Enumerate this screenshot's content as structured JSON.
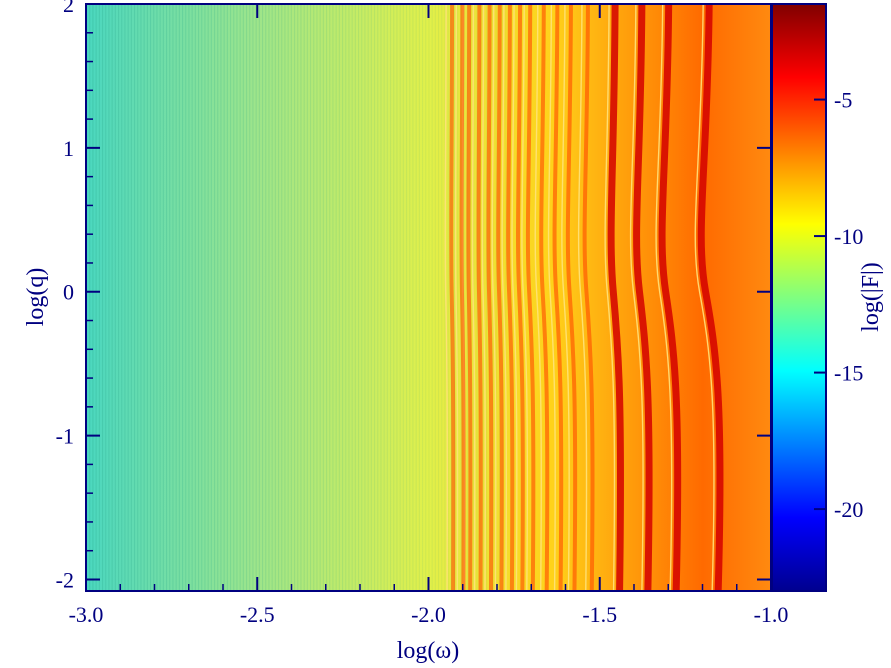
{
  "chart_data": {
    "type": "heatmap",
    "title": "",
    "xlabel": "log(ω)",
    "ylabel": "log(q)",
    "xlim": [
      -3.0,
      -1.0
    ],
    "ylim": [
      -2.08,
      2.0
    ],
    "xticks": [
      -3.0,
      -2.5,
      -2.0,
      -1.5,
      -1.0
    ],
    "xtick_labels": [
      "-3.0",
      "-2.5",
      "-2.0",
      "-1.5",
      "-1.0"
    ],
    "yticks": [
      -2,
      -1,
      0,
      1,
      2
    ],
    "ytick_labels": [
      "-2",
      "-1",
      "0",
      "1",
      "2"
    ],
    "colorbar": {
      "label": "log(|F|)",
      "range": [
        -23,
        -1.5
      ],
      "ticks": [
        -20,
        -15,
        -10,
        -5
      ],
      "tick_labels": [
        "-20",
        "-15",
        "-10",
        "-5"
      ],
      "colormap": "jet"
    },
    "bright_ridges_log_omega_at_log_q_0": [
      -1.17,
      -1.29,
      -1.37,
      -1.45,
      -1.53,
      -1.58,
      -1.62,
      -1.66,
      -1.7,
      -1.73,
      -1.76,
      -1.79,
      -1.82,
      -1.85,
      -1.88,
      -1.9,
      -1.93
    ],
    "grid": false
  },
  "colors": {
    "axis": "#000080",
    "jet_stops": [
      "#00008f",
      "#0000ff",
      "#00ffff",
      "#ffff00",
      "#ff0000",
      "#800000"
    ]
  }
}
